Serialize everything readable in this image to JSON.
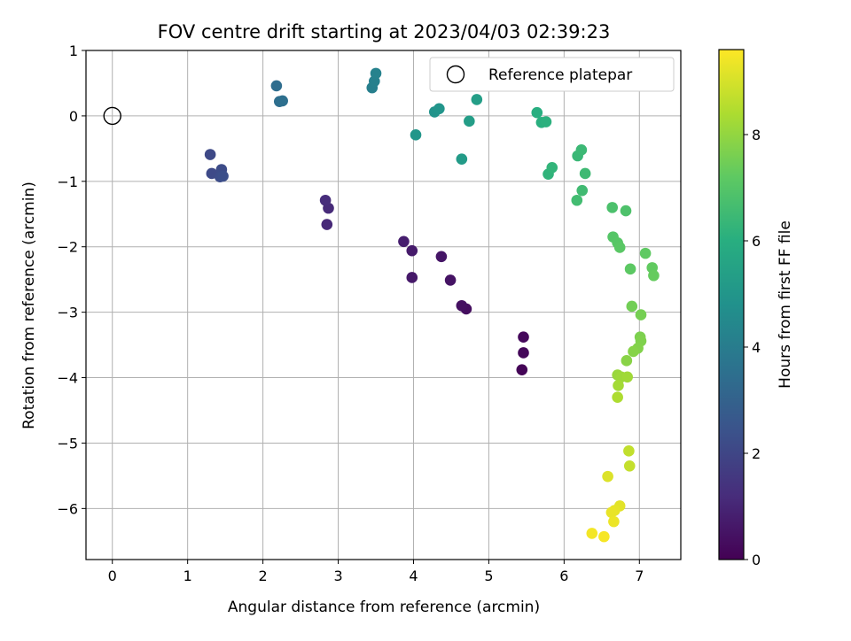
{
  "chart_data": {
    "type": "scatter",
    "title": "FOV centre drift starting at 2023/04/03 02:39:23",
    "xlabel": "Angular distance from reference (arcmin)",
    "ylabel": "Rotation from reference (arcmin)",
    "xlim": [
      -0.35,
      7.55
    ],
    "ylim": [
      -6.78,
      1.0
    ],
    "x_ticks": [
      0,
      1,
      2,
      3,
      4,
      5,
      6,
      7
    ],
    "y_ticks": [
      1,
      0,
      -1,
      -2,
      -3,
      -4,
      -5,
      -6
    ],
    "grid": true,
    "legend": {
      "position": "top-right",
      "entries": [
        {
          "label": "Reference platepar",
          "marker": "open-circle"
        }
      ]
    },
    "reference_point": {
      "x": 0,
      "y": 0
    },
    "colorbar": {
      "label": "Hours from first FF file",
      "range": [
        0,
        9.6
      ],
      "ticks": [
        0,
        2,
        4,
        6,
        8
      ],
      "colormap": "viridis"
    },
    "points": [
      {
        "x": 5.44,
        "y": -3.88,
        "t": 0.1
      },
      {
        "x": 5.46,
        "y": -3.62,
        "t": 0.15
      },
      {
        "x": 5.46,
        "y": -3.38,
        "t": 0.2
      },
      {
        "x": 4.7,
        "y": -2.95,
        "t": 0.35
      },
      {
        "x": 4.64,
        "y": -2.9,
        "t": 0.4
      },
      {
        "x": 4.49,
        "y": -2.51,
        "t": 0.5
      },
      {
        "x": 4.37,
        "y": -2.15,
        "t": 0.55
      },
      {
        "x": 3.98,
        "y": -2.47,
        "t": 0.65
      },
      {
        "x": 3.98,
        "y": -2.06,
        "t": 0.7
      },
      {
        "x": 3.87,
        "y": -1.92,
        "t": 0.8
      },
      {
        "x": 2.85,
        "y": -1.66,
        "t": 1.1
      },
      {
        "x": 2.87,
        "y": -1.41,
        "t": 1.15
      },
      {
        "x": 2.83,
        "y": -1.29,
        "t": 1.2
      },
      {
        "x": 1.3,
        "y": -0.59,
        "t": 2.1
      },
      {
        "x": 1.32,
        "y": -0.88,
        "t": 2.15
      },
      {
        "x": 1.45,
        "y": -0.82,
        "t": 2.2
      },
      {
        "x": 1.43,
        "y": -0.93,
        "t": 2.25
      },
      {
        "x": 1.47,
        "y": -0.92,
        "t": 2.3
      },
      {
        "x": 2.18,
        "y": 0.46,
        "t": 3.4
      },
      {
        "x": 2.22,
        "y": 0.22,
        "t": 3.45
      },
      {
        "x": 2.26,
        "y": 0.23,
        "t": 3.5
      },
      {
        "x": 3.45,
        "y": 0.43,
        "t": 4.1
      },
      {
        "x": 3.48,
        "y": 0.53,
        "t": 4.15
      },
      {
        "x": 3.5,
        "y": 0.65,
        "t": 4.2
      },
      {
        "x": 4.28,
        "y": 0.06,
        "t": 4.9
      },
      {
        "x": 4.34,
        "y": 0.11,
        "t": 4.95
      },
      {
        "x": 4.03,
        "y": -0.29,
        "t": 5.0
      },
      {
        "x": 4.64,
        "y": -0.66,
        "t": 5.2
      },
      {
        "x": 4.74,
        "y": -0.08,
        "t": 5.3
      },
      {
        "x": 4.84,
        "y": 0.25,
        "t": 5.35
      },
      {
        "x": 5.64,
        "y": 0.05,
        "t": 6.0
      },
      {
        "x": 5.7,
        "y": -0.1,
        "t": 6.05
      },
      {
        "x": 5.76,
        "y": -0.09,
        "t": 6.1
      },
      {
        "x": 5.79,
        "y": -0.89,
        "t": 6.2
      },
      {
        "x": 5.84,
        "y": -0.79,
        "t": 6.25
      },
      {
        "x": 6.18,
        "y": -0.61,
        "t": 6.4
      },
      {
        "x": 6.23,
        "y": -0.52,
        "t": 6.45
      },
      {
        "x": 6.28,
        "y": -0.88,
        "t": 6.5
      },
      {
        "x": 6.24,
        "y": -1.14,
        "t": 6.55
      },
      {
        "x": 6.17,
        "y": -1.29,
        "t": 6.6
      },
      {
        "x": 6.64,
        "y": -1.4,
        "t": 6.8
      },
      {
        "x": 6.82,
        "y": -1.45,
        "t": 6.85
      },
      {
        "x": 6.65,
        "y": -1.85,
        "t": 7.0
      },
      {
        "x": 6.71,
        "y": -1.94,
        "t": 7.05
      },
      {
        "x": 6.74,
        "y": -2.01,
        "t": 7.1
      },
      {
        "x": 6.88,
        "y": -2.34,
        "t": 7.15
      },
      {
        "x": 7.08,
        "y": -2.1,
        "t": 7.2
      },
      {
        "x": 7.17,
        "y": -2.32,
        "t": 7.25
      },
      {
        "x": 7.19,
        "y": -2.44,
        "t": 7.3
      },
      {
        "x": 6.9,
        "y": -2.91,
        "t": 7.5
      },
      {
        "x": 7.02,
        "y": -3.04,
        "t": 7.55
      },
      {
        "x": 7.01,
        "y": -3.38,
        "t": 7.65
      },
      {
        "x": 7.02,
        "y": -3.44,
        "t": 7.7
      },
      {
        "x": 6.98,
        "y": -3.55,
        "t": 7.75
      },
      {
        "x": 6.92,
        "y": -3.6,
        "t": 7.8
      },
      {
        "x": 6.83,
        "y": -3.74,
        "t": 7.85
      },
      {
        "x": 6.71,
        "y": -3.96,
        "t": 8.1
      },
      {
        "x": 6.76,
        "y": -3.99,
        "t": 8.15
      },
      {
        "x": 6.84,
        "y": -3.99,
        "t": 8.2
      },
      {
        "x": 6.72,
        "y": -4.12,
        "t": 8.25
      },
      {
        "x": 6.71,
        "y": -4.3,
        "t": 8.4
      },
      {
        "x": 6.86,
        "y": -5.12,
        "t": 8.7
      },
      {
        "x": 6.87,
        "y": -5.35,
        "t": 8.75
      },
      {
        "x": 6.58,
        "y": -5.51,
        "t": 9.1
      },
      {
        "x": 6.74,
        "y": -5.96,
        "t": 9.2
      },
      {
        "x": 6.67,
        "y": -6.03,
        "t": 9.25
      },
      {
        "x": 6.63,
        "y": -6.06,
        "t": 9.3
      },
      {
        "x": 6.66,
        "y": -6.2,
        "t": 9.35
      },
      {
        "x": 6.37,
        "y": -6.38,
        "t": 9.45
      },
      {
        "x": 6.53,
        "y": -6.43,
        "t": 9.5
      }
    ]
  }
}
